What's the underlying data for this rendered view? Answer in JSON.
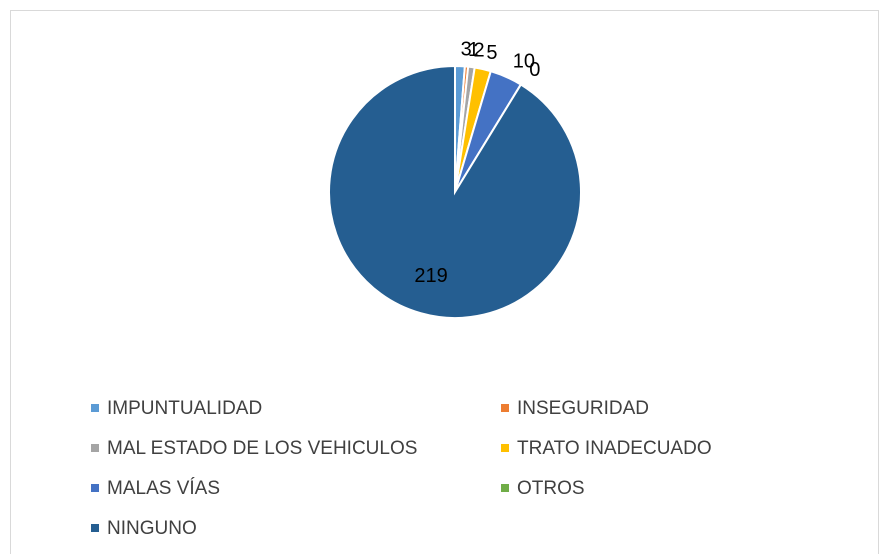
{
  "chart_data": {
    "type": "pie",
    "categories": [
      "IMPUNTUALIDAD",
      "INSEGURIDAD",
      "MAL ESTADO DE LOS VEHICULOS",
      "TRATO INADECUADO",
      "MALAS VÍAS",
      "OTROS",
      "NINGUNO"
    ],
    "values": [
      3,
      1,
      2,
      5,
      10,
      0,
      219
    ],
    "colors": [
      "#5b9bd5",
      "#ed7d31",
      "#a5a5a5",
      "#ffc000",
      "#4472c4",
      "#70ad47",
      "#255e91"
    ],
    "legend": "bottom"
  }
}
